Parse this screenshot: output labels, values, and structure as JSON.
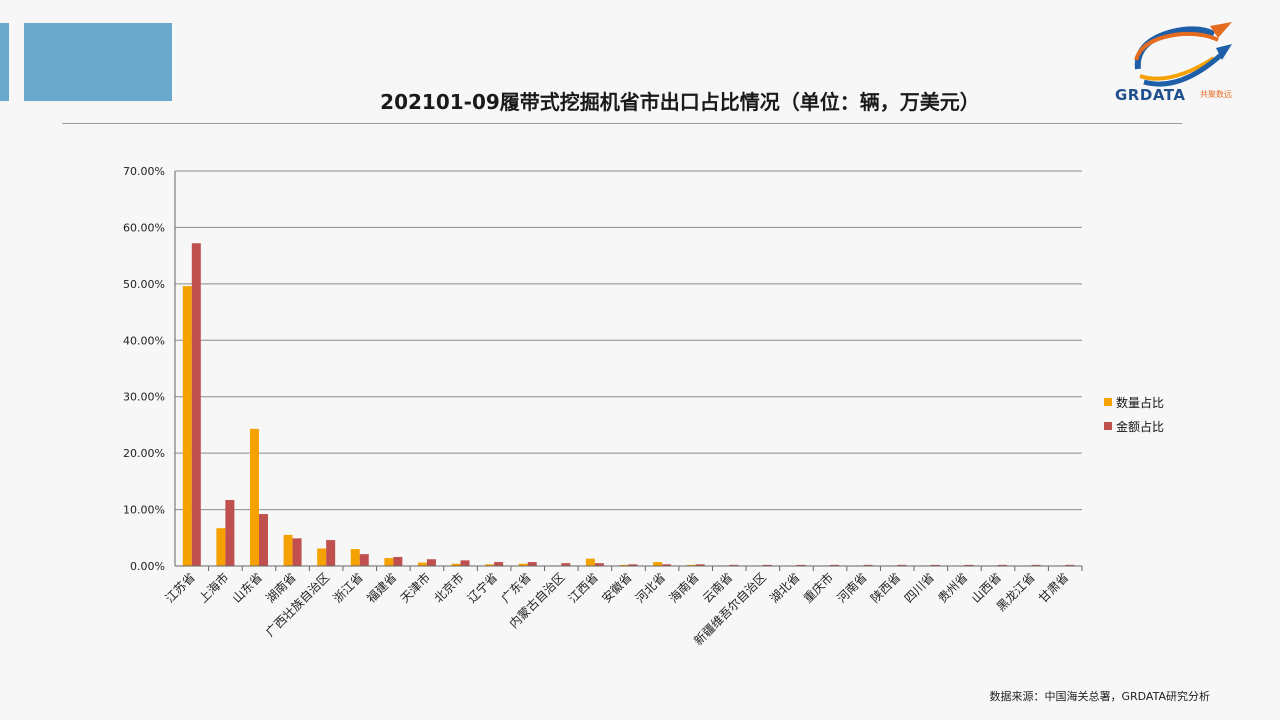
{
  "title": "202101-09履带式挖掘机省市出口占比情况（单位：辆，万美元）",
  "logo": {
    "text": "GRDATA",
    "subtext": "共聚数远"
  },
  "source": "数据来源：中国海关总署，GRDATA研究分析",
  "colors": {
    "quantity": "#f5a200",
    "amount": "#c0504d",
    "deco": "#6aa9cc",
    "grid": "#8c8c8c"
  },
  "chart_data": {
    "type": "bar",
    "categories": [
      "江苏省",
      "上海市",
      "山东省",
      "湖南省",
      "广西壮族自治区",
      "浙江省",
      "福建省",
      "天津市",
      "北京市",
      "辽宁省",
      "广东省",
      "内蒙古自治区",
      "江西省",
      "安徽省",
      "河北省",
      "海南省",
      "云南省",
      "新疆维吾尔自治区",
      "湖北省",
      "重庆市",
      "河南省",
      "陕西省",
      "四川省",
      "贵州省",
      "山西省",
      "黑龙江省",
      "甘肃省"
    ],
    "series": [
      {
        "name": "数量占比",
        "values": [
          49.6,
          6.7,
          24.3,
          5.5,
          3.1,
          3.0,
          1.4,
          0.6,
          0.4,
          0.3,
          0.4,
          0.1,
          1.3,
          0.2,
          0.7,
          0.2,
          0.1,
          0.1,
          0.1,
          0.1,
          0.1,
          0.1,
          0.1,
          0.1,
          0.1,
          0.1,
          0.1
        ]
      },
      {
        "name": "金额占比",
        "values": [
          57.2,
          11.7,
          9.2,
          4.9,
          4.6,
          2.1,
          1.6,
          1.2,
          1.0,
          0.7,
          0.7,
          0.5,
          0.5,
          0.3,
          0.3,
          0.3,
          0.2,
          0.2,
          0.2,
          0.2,
          0.2,
          0.2,
          0.2,
          0.2,
          0.2,
          0.2,
          0.2
        ]
      }
    ],
    "ylim": [
      0,
      70
    ],
    "yticks": [
      "0.00%",
      "10.00%",
      "20.00%",
      "30.00%",
      "40.00%",
      "50.00%",
      "60.00%",
      "70.00%"
    ],
    "grid": true,
    "legend_position": "right"
  }
}
